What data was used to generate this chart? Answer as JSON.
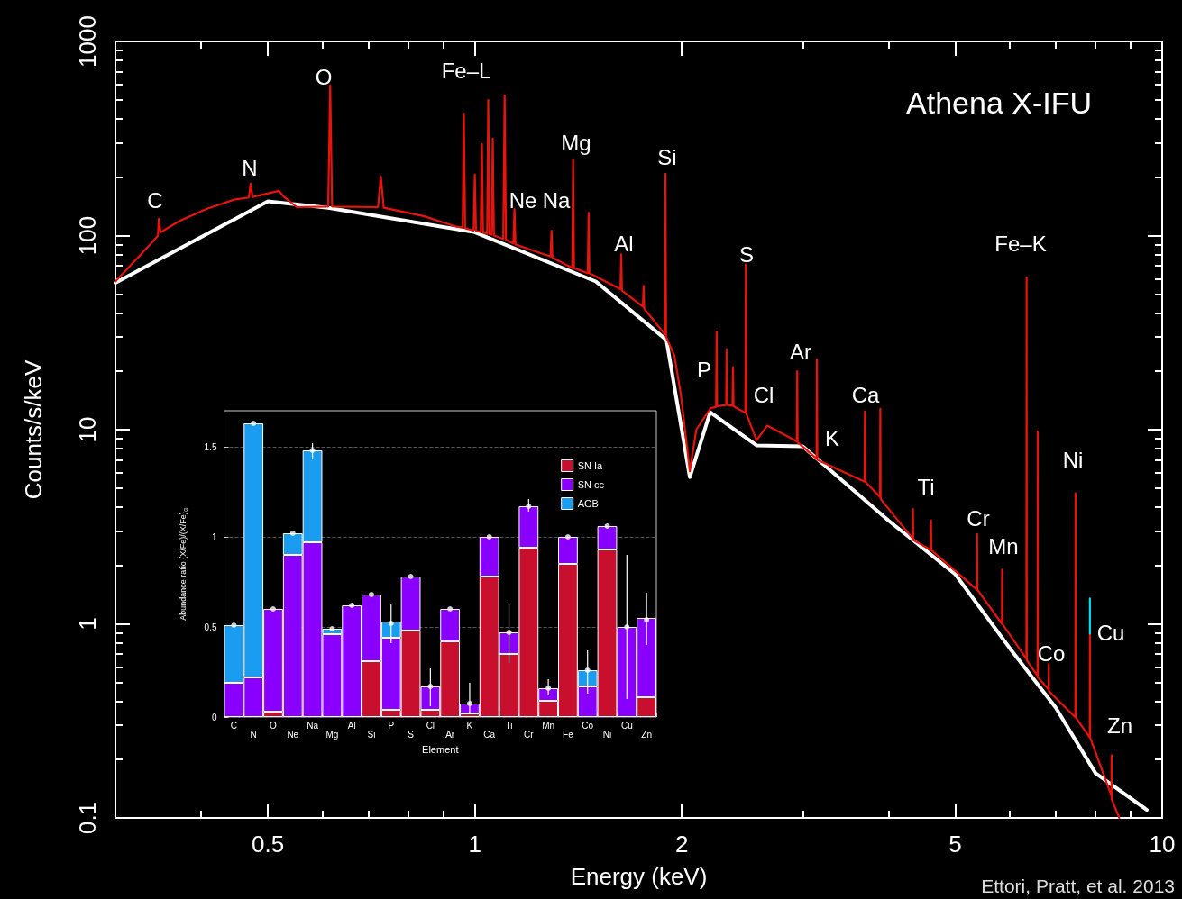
{
  "chart_data": [
    {
      "type": "line",
      "title": "Athena X-IFU",
      "xlabel": "Energy (keV)",
      "ylabel": "Counts/s/keV",
      "log": "xy",
      "xlim": [
        0.3,
        10
      ],
      "ylim": [
        0.1,
        1000
      ],
      "xticks": [
        {
          "value": 0.4,
          "label": null
        },
        0.5,
        {
          "value": 0.6,
          "label": null
        },
        {
          "value": 0.7,
          "label": null
        },
        {
          "value": 0.8,
          "label": null
        },
        {
          "value": 0.9,
          "label": null
        },
        1,
        2,
        {
          "value": 3,
          "label": null
        },
        {
          "value": 4,
          "label": null
        },
        5,
        {
          "value": 6,
          "label": null
        },
        {
          "value": 7,
          "label": null
        },
        {
          "value": 8,
          "label": null
        },
        {
          "value": 9,
          "label": null
        },
        10
      ],
      "yticks": [
        0.1,
        {
          "value": 0.2,
          "label": null
        },
        {
          "value": 0.3,
          "label": null
        },
        {
          "value": 0.4,
          "label": null
        },
        {
          "value": 0.5,
          "label": null
        },
        {
          "value": 0.6,
          "label": null
        },
        {
          "value": 0.7,
          "label": null
        },
        {
          "value": 0.8,
          "label": null
        },
        {
          "value": 0.9,
          "label": null
        },
        1,
        {
          "value": 2,
          "label": null
        },
        {
          "value": 3,
          "label": null
        },
        {
          "value": 4,
          "label": null
        },
        {
          "value": 5,
          "label": null
        },
        {
          "value": 6,
          "label": null
        },
        {
          "value": 7,
          "label": null
        },
        {
          "value": 8,
          "label": null
        },
        {
          "value": 9,
          "label": null
        },
        10,
        {
          "value": 20,
          "label": null
        },
        {
          "value": 30,
          "label": null
        },
        {
          "value": 40,
          "label": null
        },
        {
          "value": 50,
          "label": null
        },
        {
          "value": 60,
          "label": null
        },
        {
          "value": 70,
          "label": null
        },
        {
          "value": 80,
          "label": null
        },
        {
          "value": 90,
          "label": null
        },
        100,
        {
          "value": 200,
          "label": null
        },
        {
          "value": 300,
          "label": null
        },
        {
          "value": 400,
          "label": null
        },
        {
          "value": 500,
          "label": null
        },
        {
          "value": 600,
          "label": null
        },
        {
          "value": 700,
          "label": null
        },
        {
          "value": 800,
          "label": null
        },
        {
          "value": 900,
          "label": null
        },
        1000
      ],
      "grid": false,
      "legend": false,
      "marker": "none",
      "line_style": "solid",
      "series": [
        {
          "color": "#ffffff",
          "x": [
            0.3,
            0.5,
            0.612,
            1,
            1.5,
            1.9,
            2.055,
            2.2,
            2.57,
            3,
            4,
            5,
            6,
            7,
            8,
            9.5
          ],
          "values": [
            57,
            150,
            139,
            104,
            58,
            29,
            5.7,
            12.3,
            8.3,
            8.2,
            3.4,
            1.8,
            0.75,
            0.37,
            0.17,
            0.11
          ]
        },
        {
          "color": "#e8140c",
          "x": [
            0.3,
            0.32,
            0.34,
            0.346,
            0.347,
            0.349,
            0.372,
            0.407,
            0.446,
            0.469,
            0.472,
            0.475,
            0.519,
            0.528,
            0.551,
            0.612,
            0.616,
            0.62,
            0.723,
            0.73,
            0.737,
            0.842,
            0.941,
            0.96,
            0.964,
            0.968,
            0.996,
            1.0,
            1.004,
            1.02,
            1.024,
            1.028,
            1.042,
            1.046,
            1.05,
            1.058,
            1.062,
            1.066,
            1.1,
            1.105,
            1.11,
            1.138,
            1.142,
            1.146,
            1.2,
            1.289,
            1.293,
            1.297,
            1.386,
            1.39,
            1.394,
            1.46,
            1.464,
            1.468,
            1.629,
            1.633,
            1.637,
            1.756,
            1.76,
            1.764,
            1.89,
            1.894,
            1.898,
            1.952,
            1.995,
            2.055,
            2.1,
            2.203,
            2.244,
            2.248,
            2.252,
            2.321,
            2.325,
            2.329,
            2.371,
            2.375,
            2.379,
            2.475,
            2.479,
            2.483,
            2.57,
            2.664,
            2.941,
            2.945,
            2.949,
            3.142,
            3.146,
            3.15,
            3.69,
            3.694,
            3.698,
            3.886,
            3.89,
            3.894,
            4.336,
            4.34,
            4.344,
            4.606,
            4.61,
            4.614,
            5.376,
            5.38,
            5.384,
            5.846,
            5.85,
            5.854,
            6.346,
            6.35,
            6.354,
            6.586,
            6.59,
            6.594,
            6.836,
            6.84,
            6.844,
            7.476,
            7.48,
            7.484,
            7.846,
            7.85,
            7.854,
            8.436,
            8.44,
            8.444,
            8.66
          ],
          "values": [
            58,
            74,
            93,
            100,
            122,
            104,
            119,
            137,
            153,
            157,
            185,
            158,
            170,
            158,
            140,
            141,
            593,
            141,
            140,
            201,
            139,
            126,
            111,
            110,
            425,
            109,
            106,
            206,
            106,
            104,
            296,
            104,
            102,
            499,
            102,
            101,
            316,
            100,
            96,
            527,
            95,
            91,
            137,
            90,
            85,
            78,
            106,
            77,
            68,
            247,
            68,
            64,
            131,
            64,
            53,
            80,
            52,
            43,
            55,
            42,
            31,
            208,
            30,
            24,
            15,
            6.1,
            10,
            12.9,
            13.1,
            32,
            13.2,
            13.4,
            26,
            13.4,
            13.3,
            21,
            13.2,
            12.2,
            71,
            12.1,
            8.8,
            10.5,
            8.7,
            20,
            8.6,
            7.1,
            23,
            7.0,
            5.4,
            12.4,
            5.4,
            4.5,
            12.8,
            4.4,
            2.75,
            3.9,
            2.7,
            2.4,
            3.4,
            2.4,
            1.5,
            2.9,
            1.5,
            1.0,
            1.9,
            1.0,
            0.66,
            61,
            0.65,
            0.54,
            9.8,
            0.53,
            0.46,
            0.62,
            0.45,
            0.33,
            4.7,
            0.33,
            0.26,
            0.89,
            0.26,
            0.13,
            0.21,
            0.125,
            0.1
          ]
        },
        {
          "color": "#00e0f0",
          "x": [
            7.85,
            7.85
          ],
          "values": [
            0.89,
            1.35
          ]
        }
      ],
      "annotations": [
        "C",
        "N",
        "O",
        "Fe–L",
        "Ne",
        "Na",
        "Mg",
        "Si",
        "Al",
        "S",
        "Fe–K",
        "P",
        "Cl",
        "Ar",
        "Ca",
        "K",
        "Ti",
        "Cr",
        "Mn",
        "Ni",
        "Cu",
        "Co",
        "Zn",
        "Ettori, Pratt, et al. 2013"
      ]
    },
    {
      "type": "bar",
      "stacked": true,
      "xlabel": "Element",
      "ylabel": "Abundance ratio (X/Fe)/(X/Fe)$_{⊙}$",
      "categories": [
        "C",
        "N",
        "O",
        "Ne",
        "Na",
        "Mg",
        "Al",
        "Si",
        "P",
        "S",
        "Cl",
        "Ar",
        "K",
        "Ca",
        "Ti",
        "Cr",
        "Mn",
        "Fe",
        "Co",
        "Ni",
        "Cu",
        "Zn"
      ],
      "ylim": [
        0,
        1.7
      ],
      "yticks": [
        0,
        0.5,
        1,
        1.5
      ],
      "grid": "y",
      "legend": "top right",
      "series": [
        {
          "name": "SN Ia",
          "color": "#c8102e",
          "values": [
            0,
            0,
            0.03,
            0,
            0,
            0,
            0,
            0.31,
            0.04,
            0.48,
            0.04,
            0.42,
            0.02,
            0.78,
            0.35,
            0.94,
            0.09,
            0.85,
            0,
            0.93,
            0,
            0.11
          ]
        },
        {
          "name": "SN cc",
          "color": "#8a00ff",
          "values": [
            0.19,
            0.22,
            0.57,
            0.9,
            0.97,
            0.46,
            0.62,
            0.37,
            0.4,
            0.3,
            0.13,
            0.18,
            0.055,
            0.22,
            0.12,
            0.23,
            0.07,
            0.15,
            0.17,
            0.13,
            0.5,
            0.44
          ]
        },
        {
          "name": "AGB",
          "color": "#1a9cf0",
          "values": [
            0.32,
            1.41,
            0,
            0.12,
            0.51,
            0.03,
            0,
            0,
            0.09,
            0,
            0,
            0,
            0,
            0,
            0,
            0,
            0,
            0,
            0.09,
            0,
            0,
            0
          ]
        },
        {
          "type": "scatter",
          "color": "#ffffff",
          "x": [
            "C",
            "N",
            "O",
            "Ne",
            "Na",
            "Mg",
            "Al",
            "Si",
            "P",
            "S",
            "Cl",
            "Ar",
            "K",
            "Ca",
            "Ti",
            "Cr",
            "Mn",
            "Fe",
            "Co",
            "Ni",
            "Cu",
            "Zn"
          ],
          "values": [
            0.51,
            1.63,
            0.6,
            1.02,
            1.48,
            0.49,
            0.62,
            0.68,
            0.52,
            0.78,
            0.17,
            0.6,
            0.075,
            1.0,
            0.47,
            1.17,
            0.16,
            1.0,
            0.26,
            1.06,
            0.5,
            0.54
          ],
          "errors": [
            null,
            null,
            null,
            null,
            [
              1.43,
              1.52
            ],
            null,
            null,
            null,
            [
              0.41,
              0.63
            ],
            null,
            [
              0.06,
              0.27
            ],
            null,
            [
              0.02,
              0.19
            ],
            null,
            [
              0.3,
              0.63
            ],
            [
              1.14,
              1.21
            ],
            [
              0.12,
              0.21
            ],
            null,
            [
              0.13,
              0.37
            ],
            null,
            [
              0.1,
              0.9
            ],
            [
              0.4,
              0.69
            ]
          ]
        }
      ]
    }
  ]
}
